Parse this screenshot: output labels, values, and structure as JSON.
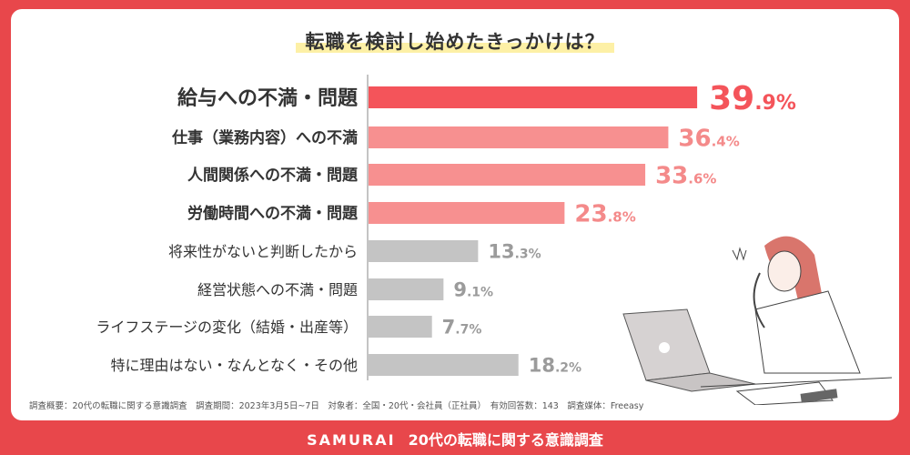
{
  "title": "転職を検討し始めたきっかけは？",
  "chart_data": {
    "type": "bar",
    "orientation": "horizontal",
    "categories": [
      "給与への不満・問題",
      "仕事（業務内容）への不満",
      "人間関係への不満・問題",
      "労働時間への不満・問題",
      "将来性がないと判断したから",
      "経営状態への不満・問題",
      "ライフステージの変化（結婚・出産等）",
      "特に理由はない・なんとなく・その他"
    ],
    "values": [
      39.9,
      36.4,
      33.6,
      23.8,
      13.3,
      9.1,
      7.7,
      18.2
    ],
    "unit": "%",
    "colors": [
      "#f4545a",
      "#f79090",
      "#f79090",
      "#f79090",
      "#c4c4c4",
      "#c4c4c4",
      "#c4c4c4",
      "#c4c4c4"
    ],
    "label_colors": [
      "#f4545a",
      "#f48a8a",
      "#f48a8a",
      "#f48a8a",
      "#9b9b9b",
      "#9b9b9b",
      "#9b9b9b",
      "#9b9b9b"
    ],
    "grid": false
  },
  "note": "調査概要：20代の転職に関する意識調査　調査期間：2023年3月5日~7日　対象者：全国・20代・会社員（正社員）　有効回答数：143　調査媒体：Freeasy",
  "footer": {
    "logo": "SAMURAI",
    "text": "20代の転職に関する意識調査"
  },
  "colors": {
    "background": "#e8474b",
    "highlight": "#fdf0a6"
  }
}
